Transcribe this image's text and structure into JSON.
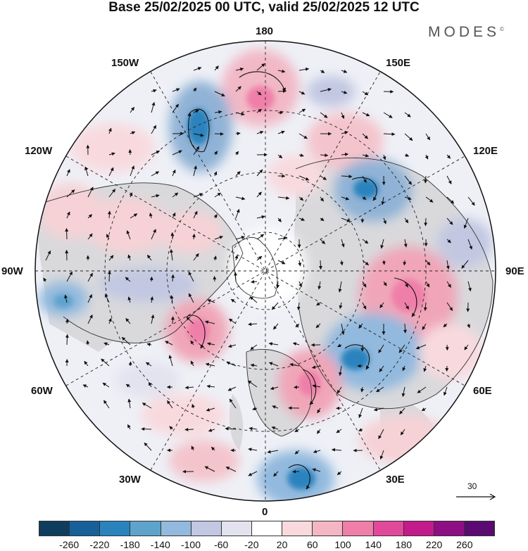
{
  "header": {
    "title": "Base 25/02/2025 00 UTC, valid 25/02/2025 12 UTC",
    "brand": "MODES",
    "brand_mark": "©"
  },
  "map": {
    "projection": "north-polar-stereographic",
    "longitude_labels": {
      "n": "180",
      "nw1": "150W",
      "ne1": "150E",
      "nw2": "120W",
      "ne2": "120E",
      "w": "90W",
      "e": "90E",
      "sw2": "60W",
      "se2": "60E",
      "sw1": "30W",
      "se1": "30E",
      "s": "0"
    },
    "anomaly_colors": {
      "strong_negative": "#2f7fb3",
      "negative": "#8fb2d6",
      "weak_negative": "#c9d0e6",
      "neutral": "#ffffff",
      "weak_positive": "#f6d2d6",
      "positive": "#f0a6b8",
      "strong_positive": "#e8609a"
    },
    "reference_vector": "30"
  },
  "colorbar": {
    "colors": [
      "#0f3d5e",
      "#18609a",
      "#2a83bd",
      "#5ea3cc",
      "#92b9de",
      "#c2c8e2",
      "#e3e2ef",
      "#ffffff",
      "#f8dade",
      "#f4b6c3",
      "#ef7fa9",
      "#e14a9b",
      "#c41b8c",
      "#8e0f83",
      "#5a0a70"
    ],
    "ticks": [
      "-260",
      "-220",
      "-180",
      "-140",
      "-100",
      "-60",
      "-20",
      "20",
      "60",
      "100",
      "140",
      "180",
      "220",
      "260"
    ]
  }
}
